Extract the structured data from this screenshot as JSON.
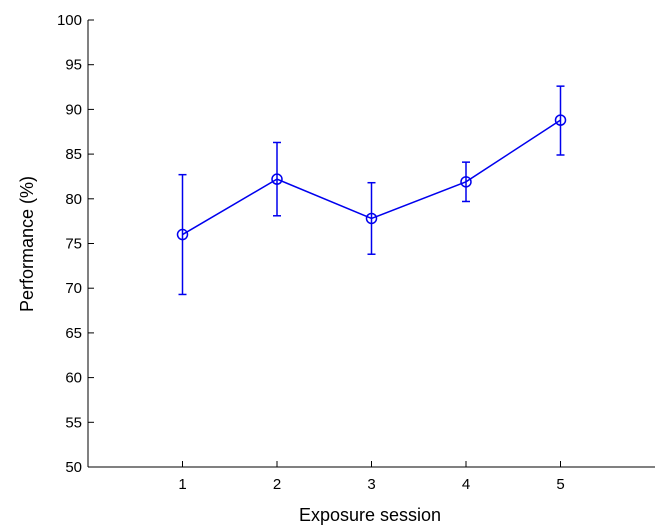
{
  "chart_data": {
    "type": "line",
    "title": "",
    "xlabel": "Exposure session",
    "ylabel": "Performance (%)",
    "xlim": [
      0,
      6
    ],
    "ylim": [
      50,
      100
    ],
    "x": [
      1,
      2,
      3,
      4,
      5
    ],
    "xticks": [
      1,
      2,
      3,
      4,
      5
    ],
    "yticks": [
      50,
      55,
      60,
      65,
      70,
      75,
      80,
      85,
      90,
      95,
      100
    ],
    "series": [
      {
        "values": [
          76.0,
          82.2,
          77.8,
          81.9,
          88.8
        ],
        "error_low": [
          69.3,
          78.1,
          73.8,
          79.7,
          84.9
        ],
        "error_high": [
          82.7,
          86.3,
          81.8,
          84.1,
          92.6
        ],
        "color": "#0000ee",
        "marker": "circle"
      }
    ],
    "grid": false,
    "legend": "none"
  }
}
